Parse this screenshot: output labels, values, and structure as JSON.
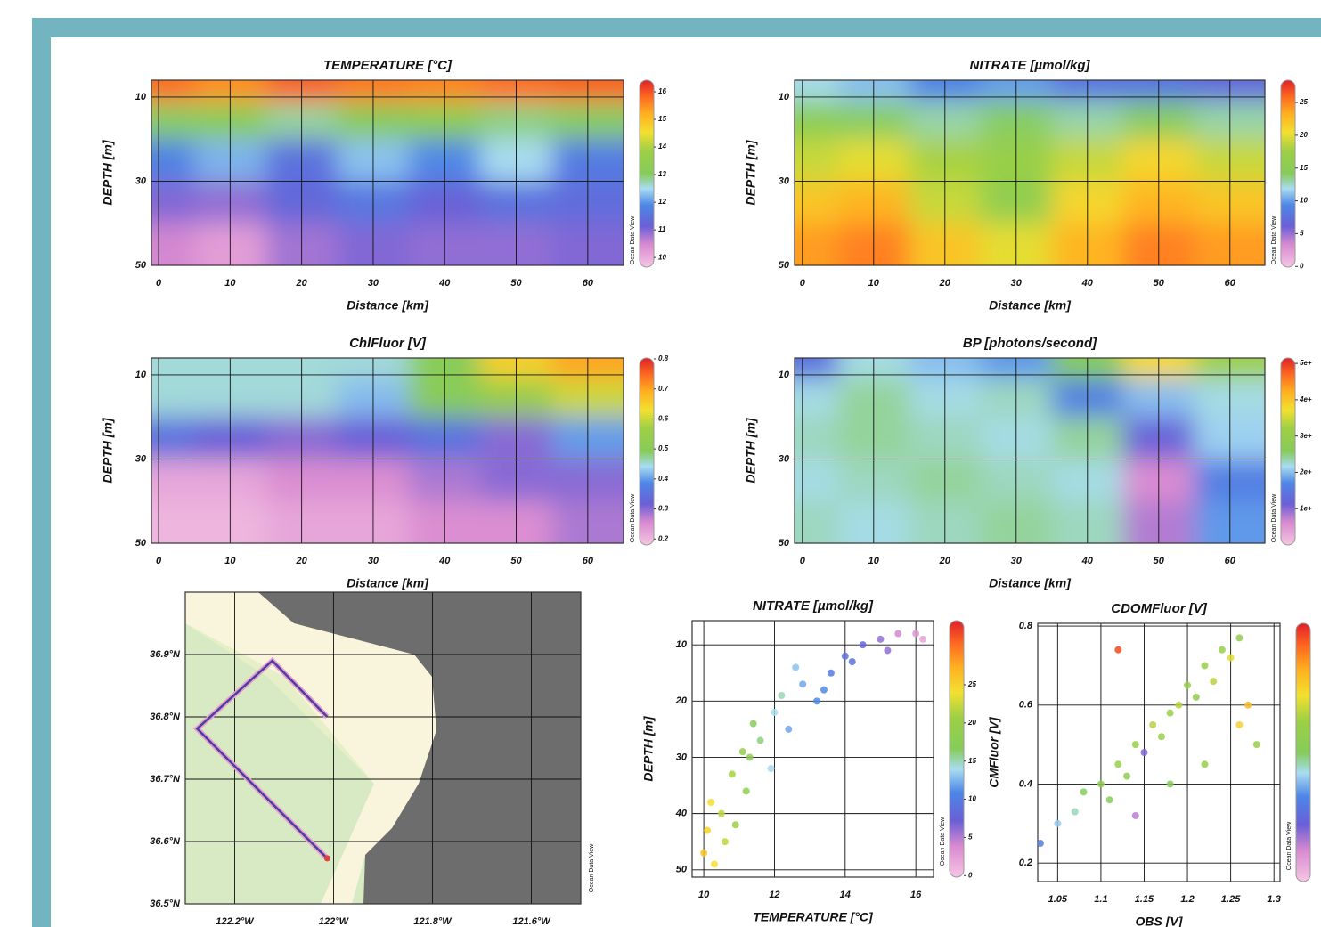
{
  "chart_data": [
    {
      "type": "heatmap",
      "title": "TEMPERATURE [°C]",
      "x_label": "Distance [km]",
      "y_label": "DEPTH [m]",
      "watermark": "Ocean Data View",
      "xlim": [
        -1,
        65
      ],
      "xticks": [
        0,
        10,
        20,
        30,
        40,
        50,
        60
      ],
      "ylim": [
        6,
        50
      ],
      "yticks": [
        10,
        30,
        50
      ],
      "y_reversed": true,
      "grid": true,
      "x": [
        0,
        10,
        20,
        30,
        40,
        50,
        60
      ],
      "y": [
        7,
        15,
        25,
        35,
        45
      ],
      "z": [
        [
          15.8,
          15.5,
          15.9,
          15.7,
          15.6,
          15.8,
          15.9
        ],
        [
          13,
          13.2,
          12.8,
          13.1,
          13.3,
          12.9,
          13
        ],
        [
          11.8,
          12.2,
          11.5,
          12.3,
          11.9,
          12.5,
          11.7
        ],
        [
          11,
          10.9,
          11.3,
          11.6,
          11.2,
          11.5,
          11.4
        ],
        [
          10.5,
          10.2,
          10.8,
          11,
          10.9,
          10.9,
          11
        ]
      ],
      "clim": [
        9.65,
        16.42
      ],
      "cticks": [
        10,
        11,
        12,
        13,
        14,
        15,
        16
      ]
    },
    {
      "type": "heatmap",
      "title": "NITRATE [µmol/kg]",
      "x_label": "Distance [km]",
      "y_label": "DEPTH [m]",
      "watermark": "Ocean Data View",
      "xlim": [
        -1.1,
        64.9
      ],
      "xticks": [
        0,
        10,
        20,
        30,
        40,
        50,
        60
      ],
      "ylim": [
        6,
        50
      ],
      "yticks": [
        10,
        30,
        50
      ],
      "y_reversed": true,
      "grid": true,
      "x": [
        0,
        10,
        20,
        30,
        40,
        50,
        60
      ],
      "y": [
        7,
        15,
        25,
        35,
        45
      ],
      "z": [
        [
          12,
          11,
          9,
          10,
          8,
          8,
          7
        ],
        [
          15,
          14,
          13,
          14,
          13,
          14,
          13
        ],
        [
          19,
          20,
          18,
          17,
          19,
          21,
          19
        ],
        [
          22,
          23,
          19,
          16,
          21,
          23,
          22
        ],
        [
          24,
          25,
          22,
          20,
          23,
          25,
          24
        ]
      ],
      "clim": [
        -0.1,
        28.4
      ],
      "cticks": [
        0,
        5,
        10,
        15,
        20,
        25
      ]
    },
    {
      "type": "heatmap",
      "title": "ChlFluor [V]",
      "x_label": "Distance [km]",
      "y_label": "DEPTH [m]",
      "watermark": "Ocean Data View",
      "xlim": [
        -1,
        65
      ],
      "xticks": [
        0,
        10,
        20,
        30,
        40,
        50,
        60
      ],
      "ylim": [
        6,
        50
      ],
      "yticks": [
        10,
        30,
        50
      ],
      "y_reversed": true,
      "grid": true,
      "x": [
        0,
        10,
        20,
        30,
        40,
        50,
        60
      ],
      "y": [
        7,
        15,
        25,
        35,
        45
      ],
      "z": [
        [
          0.45,
          0.45,
          0.45,
          0.45,
          0.5,
          0.65,
          0.7
        ],
        [
          0.45,
          0.45,
          0.45,
          0.42,
          0.5,
          0.55,
          0.6
        ],
        [
          0.35,
          0.32,
          0.3,
          0.32,
          0.35,
          0.3,
          0.4
        ],
        [
          0.22,
          0.22,
          0.25,
          0.25,
          0.28,
          0.3,
          0.3
        ],
        [
          0.2,
          0.2,
          0.22,
          0.22,
          0.25,
          0.25,
          0.28
        ]
      ],
      "clim": [
        0.18,
        0.803
      ],
      "cticks": [
        0.2,
        0.3,
        0.4,
        0.5,
        0.6,
        0.7,
        0.8
      ]
    },
    {
      "type": "heatmap",
      "title": "BP [photons/second]",
      "x_label": "Distance [km]",
      "y_label": "DEPTH [m]",
      "watermark": "Ocean Data View",
      "xlim": [
        -1.1,
        64.9
      ],
      "xticks": [
        0,
        10,
        20,
        30,
        40,
        50,
        60
      ],
      "ylim": [
        6,
        50
      ],
      "yticks": [
        10,
        30,
        50
      ],
      "y_reversed": true,
      "grid": true,
      "x": [
        0,
        10,
        20,
        30,
        40,
        50,
        60
      ],
      "y": [
        7,
        15,
        25,
        35,
        45
      ],
      "z": [
        [
          1.4,
          2.2,
          2.0,
          1.8,
          2.6,
          3.8,
          3.2
        ],
        [
          2.2,
          2.4,
          2.2,
          2.3,
          1.6,
          2.0,
          2.2
        ],
        [
          2.3,
          2.4,
          2.3,
          2.2,
          2.4,
          1.2,
          2.1
        ],
        [
          2.2,
          2.3,
          2.4,
          2.3,
          2.2,
          0.6,
          1.6
        ],
        [
          2.3,
          2.2,
          2.3,
          2.4,
          2.3,
          0.8,
          1.8
        ]
      ],
      "clim": [
        0,
        5.15
      ],
      "cticks": [
        {
          "value": 1,
          "label": "1e+"
        },
        {
          "value": 2,
          "label": "2e+"
        },
        {
          "value": 3,
          "label": "3e+"
        },
        {
          "value": 4,
          "label": "4e+"
        },
        {
          "value": 5,
          "label": "5e+"
        }
      ]
    },
    {
      "type": "map",
      "watermark": "Ocean Data View",
      "xlim": [
        -122.3,
        -121.5
      ],
      "xticks": [
        {
          "value": -122.2,
          "label": "122.2°W"
        },
        {
          "value": -122,
          "label": "122°W"
        },
        {
          "value": -121.8,
          "label": "121.8°W"
        },
        {
          "value": -121.6,
          "label": "121.6°W"
        }
      ],
      "ylim": [
        36.5,
        37.0
      ],
      "yticks": [
        {
          "value": 36.5,
          "label": "36.5°N"
        },
        {
          "value": 36.6,
          "label": "36.6°N"
        },
        {
          "value": 36.7,
          "label": "36.7°N"
        },
        {
          "value": 36.8,
          "label": "36.8°N"
        },
        {
          "value": 36.9,
          "label": "36.9°N"
        }
      ],
      "grid": true,
      "track": {
        "color": "#4a3fa8",
        "x": [
          -122.013,
          -122.276,
          -122.124,
          -122.013
        ],
        "y": [
          36.573,
          36.781,
          36.89,
          36.8
        ]
      }
    },
    {
      "type": "scatter",
      "title": "NITRATE [µmol/kg]",
      "x_label": "TEMPERATURE [°C]",
      "y_label": "DEPTH [m]",
      "watermark": "Ocean Data View",
      "xlim": [
        9.67,
        16.5
      ],
      "xticks": [
        10,
        12,
        14,
        16
      ],
      "ylim": [
        5.7,
        51.3
      ],
      "yticks": [
        10,
        20,
        30,
        40,
        50
      ],
      "y_reversed": true,
      "grid": true,
      "x": [
        10.0,
        10.1,
        10.3,
        10.6,
        10.2,
        10.5,
        10.9,
        11.2,
        10.8,
        11.3,
        11.6,
        11.9,
        11.4,
        12.0,
        12.4,
        12.2,
        12.8,
        13.2,
        12.6,
        13.6,
        14.0,
        13.4,
        14.5,
        15.0,
        14.2,
        15.5,
        16.0,
        15.2,
        16.2,
        11.1
      ],
      "y": [
        47,
        43,
        49,
        45,
        38,
        40,
        42,
        36,
        33,
        30,
        27,
        32,
        24,
        22,
        25,
        19,
        17,
        20,
        14,
        15,
        12,
        18,
        10,
        9,
        13,
        8,
        8,
        11,
        9,
        29
      ],
      "c": [
        26,
        25,
        24,
        22,
        24,
        22,
        20,
        19,
        21,
        18,
        16,
        14,
        17,
        14,
        12,
        15,
        12,
        11,
        13,
        10,
        9,
        11,
        8,
        6,
        9,
        4,
        3,
        6,
        2,
        19
      ],
      "clim": [
        -0.2,
        33.4
      ],
      "cticks": [
        0,
        5,
        10,
        15,
        20,
        25
      ]
    },
    {
      "type": "scatter",
      "title": "CDOMFluor [V]",
      "x_label": "OBS [V]",
      "y_label": "CMFluor [V]",
      "watermark": "Ocean Data View",
      "xlim": [
        1.027,
        1.307
      ],
      "xticks": [
        1.05,
        1.1,
        1.15,
        1.2,
        1.25,
        1.3
      ],
      "ylim": [
        0.153,
        0.807
      ],
      "yticks": [
        0.2,
        0.4,
        0.6,
        0.8
      ],
      "grid": true,
      "x": [
        1.03,
        1.05,
        1.07,
        1.08,
        1.1,
        1.11,
        1.12,
        1.13,
        1.14,
        1.15,
        1.16,
        1.17,
        1.18,
        1.19,
        1.2,
        1.21,
        1.22,
        1.23,
        1.24,
        1.25,
        1.26,
        1.27,
        1.28,
        1.14,
        1.18,
        1.22,
        1.26,
        1.12
      ],
      "y": [
        0.25,
        0.3,
        0.33,
        0.38,
        0.4,
        0.36,
        0.45,
        0.42,
        0.5,
        0.48,
        0.55,
        0.52,
        0.58,
        0.6,
        0.65,
        0.62,
        0.7,
        0.66,
        0.74,
        0.72,
        0.77,
        0.6,
        0.5,
        0.32,
        0.4,
        0.45,
        0.55,
        0.74
      ],
      "c": [
        0.3,
        0.4,
        0.45,
        0.5,
        0.55,
        0.5,
        0.6,
        0.55,
        0.6,
        0.2,
        0.65,
        0.6,
        0.6,
        0.65,
        0.6,
        0.55,
        0.6,
        0.65,
        0.6,
        0.7,
        0.55,
        0.8,
        0.6,
        0.15,
        0.5,
        0.6,
        0.75,
        0.95
      ],
      "clim": [
        0,
        1
      ]
    }
  ]
}
